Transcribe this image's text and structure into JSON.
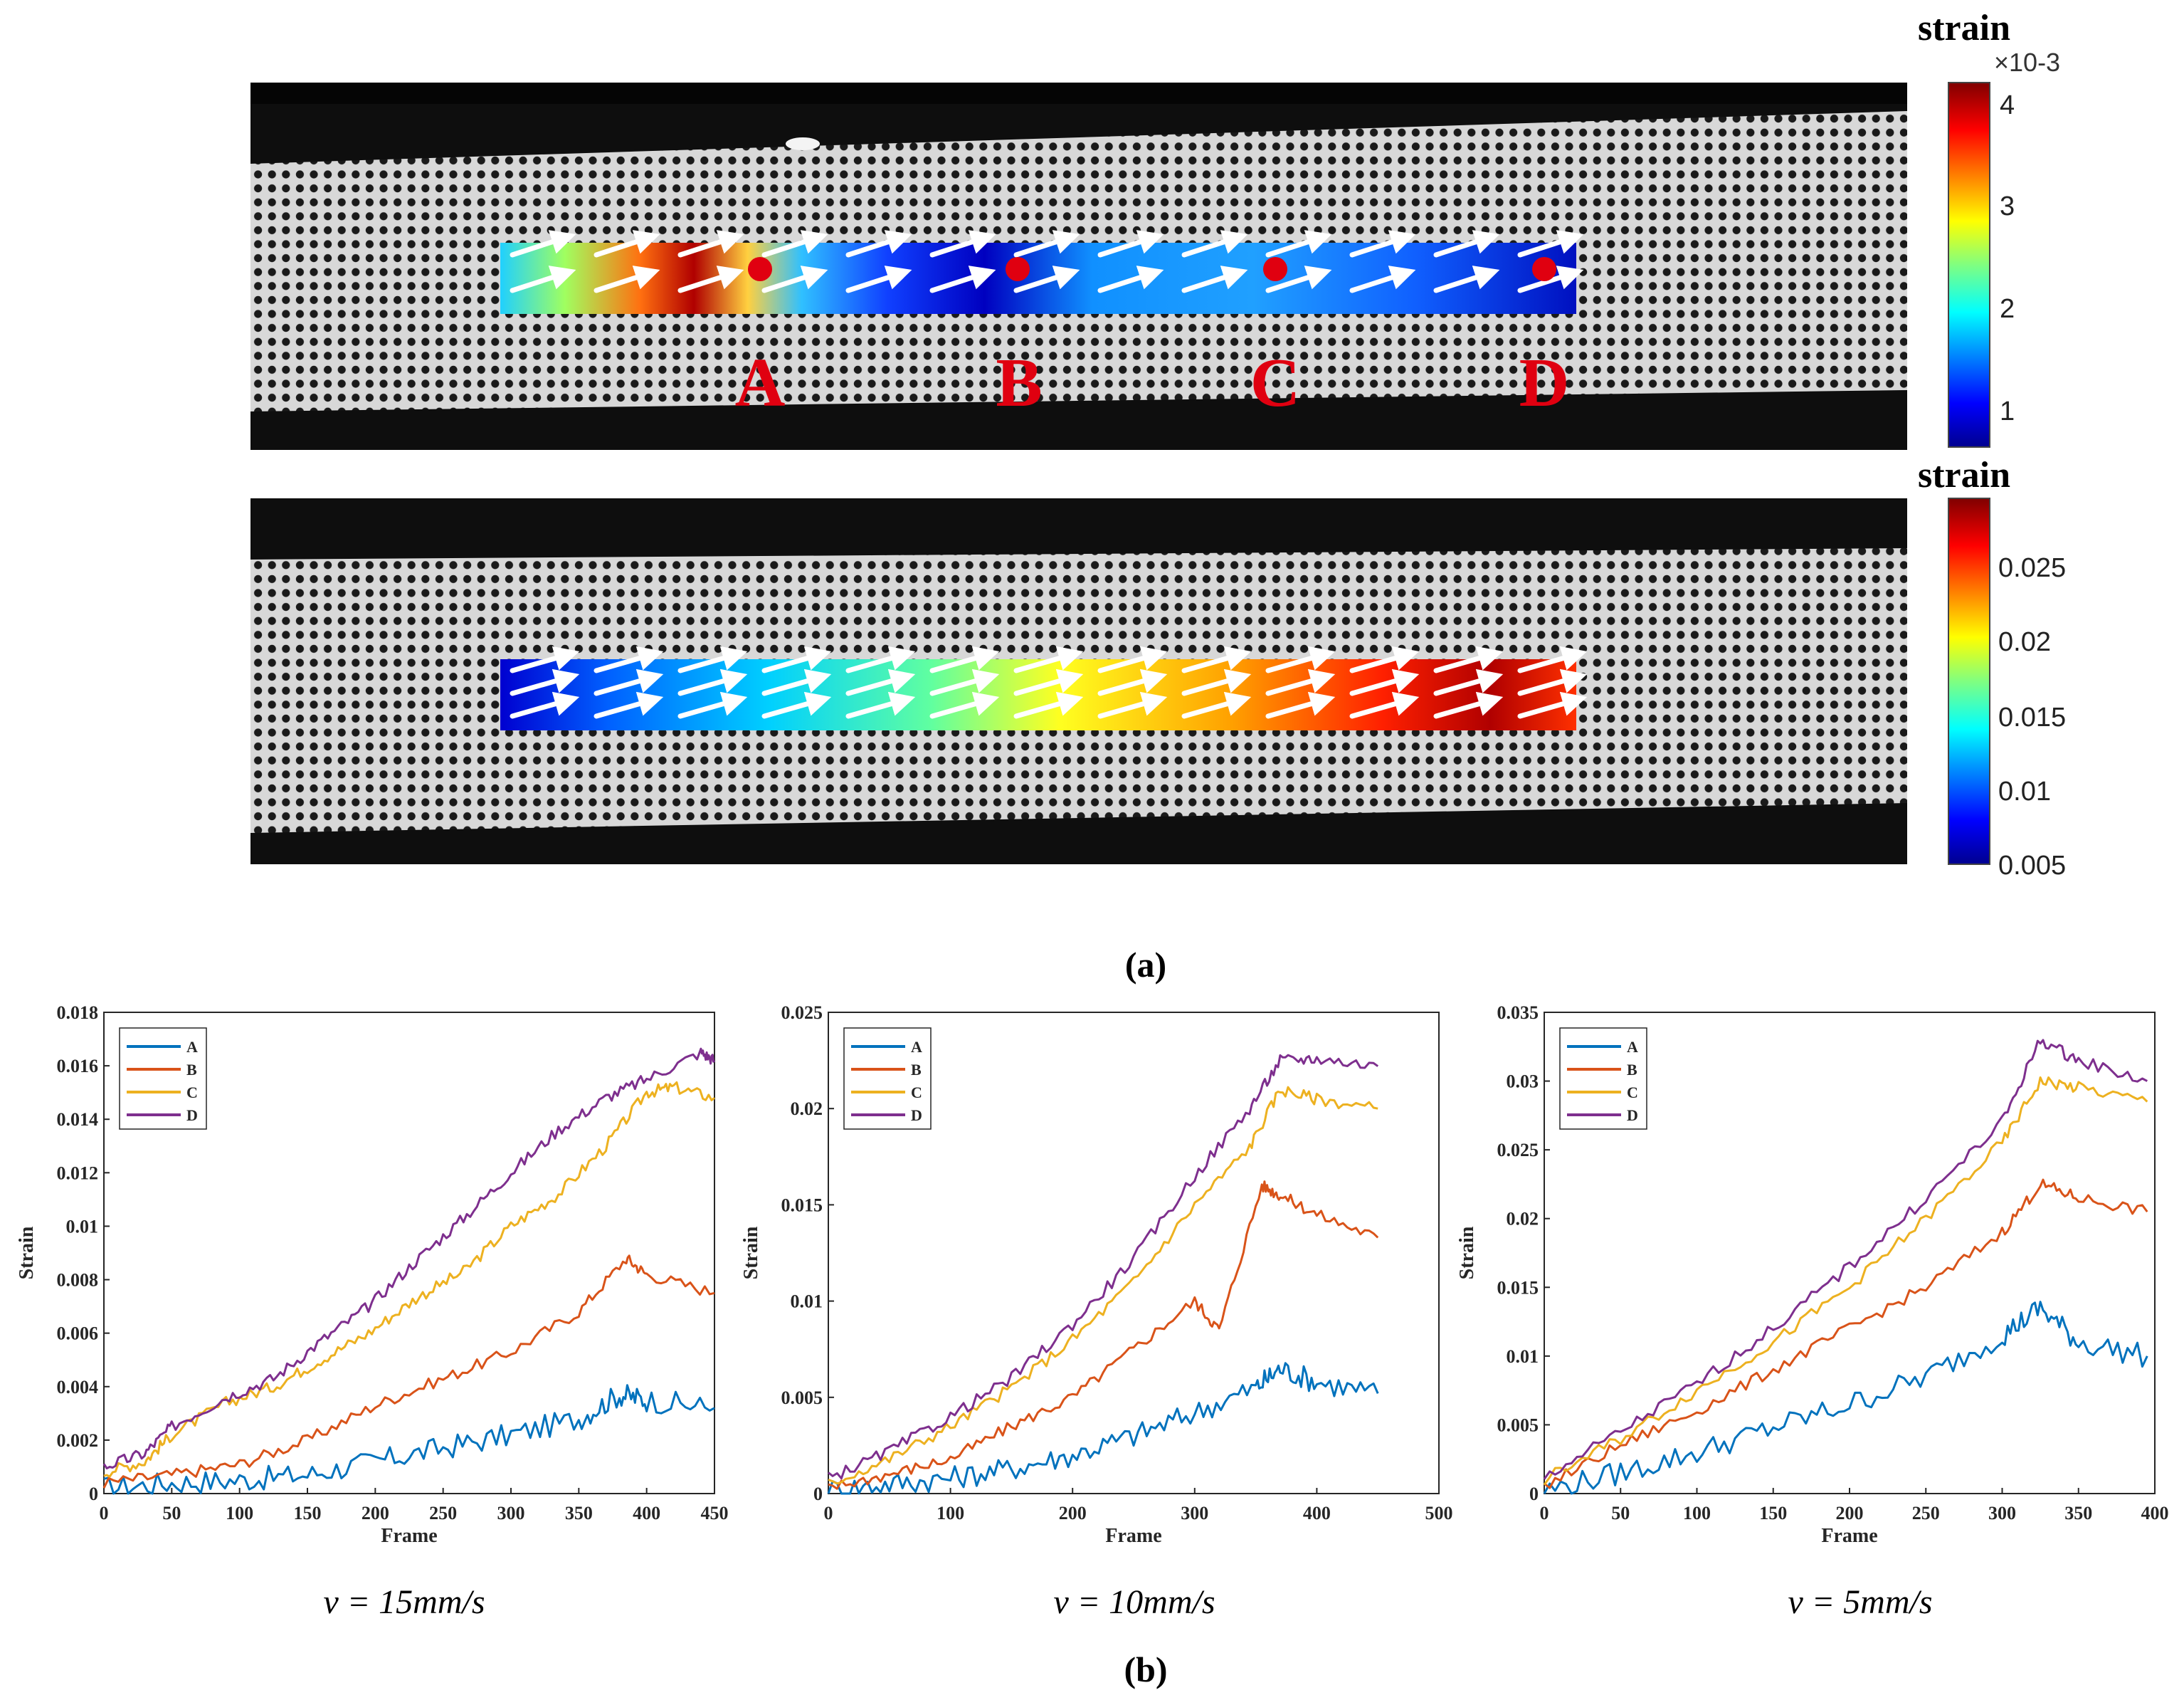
{
  "panel_a": {
    "caption": "(a)",
    "top_map": {
      "colorbar_title": "strain",
      "colorbar_exponent": "×10-3",
      "colorbar_ticks": [
        "4",
        "3",
        "2",
        "1"
      ],
      "point_labels": [
        "A",
        "B",
        "C",
        "D"
      ],
      "colors": {
        "marker": "#e00010",
        "label": "#e00010"
      }
    },
    "bottom_map": {
      "colorbar_title": "strain",
      "colorbar_ticks": [
        "0.025",
        "0.02",
        "0.015",
        "0.01",
        "0.005"
      ]
    }
  },
  "panel_b": {
    "caption": "(b)",
    "velocity_labels": [
      "v = 15mm/s",
      "v = 10mm/s",
      "v = 5mm/s"
    ]
  },
  "chart_data": [
    {
      "type": "line",
      "title": "",
      "subtitle": "v = 15mm/s",
      "xlabel": "Frame",
      "ylabel": "Strain",
      "xlim": [
        0,
        450
      ],
      "ylim": [
        0,
        0.018
      ],
      "xticks": [
        0,
        50,
        100,
        150,
        200,
        250,
        300,
        350,
        400,
        450
      ],
      "yticks": [
        0,
        0.002,
        0.004,
        0.006,
        0.008,
        0.01,
        0.012,
        0.014,
        0.016,
        0.018
      ],
      "ytick_labels": [
        "0",
        "0.002",
        "0.004",
        "0.006",
        "0.008",
        "0.01",
        "0.012",
        "0.014",
        "0.016",
        "0.018"
      ],
      "legend": "top-left",
      "series": [
        {
          "name": "A",
          "color": "#0072bd",
          "x": [
            0,
            50,
            100,
            150,
            200,
            250,
            300,
            350,
            380,
            400,
            450
          ],
          "values": [
            0.0002,
            0.0004,
            0.0005,
            0.0007,
            0.0012,
            0.0017,
            0.0022,
            0.0028,
            0.0037,
            0.0035,
            0.0032
          ]
        },
        {
          "name": "B",
          "color": "#d95319",
          "x": [
            0,
            50,
            100,
            150,
            200,
            250,
            300,
            350,
            385,
            400,
            450
          ],
          "values": [
            0.0004,
            0.0007,
            0.0011,
            0.002,
            0.0033,
            0.0043,
            0.0053,
            0.0068,
            0.0088,
            0.0082,
            0.0075
          ]
        },
        {
          "name": "C",
          "color": "#edb120",
          "x": [
            0,
            30,
            50,
            90,
            125,
            160,
            195,
            230,
            265,
            300,
            335,
            370,
            400,
            420,
            450
          ],
          "values": [
            0.0008,
            0.0012,
            0.0022,
            0.0034,
            0.004,
            0.005,
            0.006,
            0.0073,
            0.0083,
            0.01,
            0.0112,
            0.013,
            0.015,
            0.0152,
            0.0148
          ]
        },
        {
          "name": "D",
          "color": "#7e2f8e",
          "x": [
            0,
            30,
            50,
            90,
            125,
            160,
            195,
            230,
            265,
            300,
            335,
            370,
            400,
            440,
            450
          ],
          "values": [
            0.001,
            0.0015,
            0.0025,
            0.0036,
            0.0043,
            0.0057,
            0.007,
            0.0087,
            0.0103,
            0.012,
            0.0136,
            0.0148,
            0.0155,
            0.0165,
            0.0162
          ]
        }
      ]
    },
    {
      "type": "line",
      "title": "",
      "subtitle": "v = 10mm/s",
      "xlabel": "Frame",
      "ylabel": "Strain",
      "xlim": [
        0,
        500
      ],
      "ylim": [
        0,
        0.025
      ],
      "xticks": [
        0,
        100,
        200,
        300,
        400,
        500
      ],
      "yticks": [
        0,
        0.005,
        0.01,
        0.015,
        0.02,
        0.025
      ],
      "ytick_labels": [
        "0",
        "0.005",
        "0.01",
        "0.015",
        "0.02",
        "0.025"
      ],
      "legend": "top-left",
      "series": [
        {
          "name": "A",
          "color": "#0072bd",
          "x": [
            0,
            50,
            100,
            150,
            200,
            250,
            300,
            350,
            370,
            400,
            450
          ],
          "values": [
            0.0002,
            0.0005,
            0.0008,
            0.0013,
            0.002,
            0.003,
            0.0042,
            0.0055,
            0.0065,
            0.0058,
            0.0052
          ]
        },
        {
          "name": "B",
          "color": "#d95319",
          "x": [
            0,
            50,
            100,
            150,
            200,
            250,
            300,
            320,
            355,
            370,
            400,
            450
          ],
          "values": [
            0.0003,
            0.001,
            0.0018,
            0.0035,
            0.005,
            0.0075,
            0.01,
            0.0085,
            0.016,
            0.0155,
            0.0145,
            0.0133
          ]
        },
        {
          "name": "C",
          "color": "#edb120",
          "x": [
            0,
            50,
            100,
            150,
            200,
            250,
            300,
            345,
            370,
            400,
            450
          ],
          "values": [
            0.0005,
            0.0018,
            0.0035,
            0.0055,
            0.008,
            0.011,
            0.015,
            0.018,
            0.021,
            0.0205,
            0.02
          ]
        },
        {
          "name": "D",
          "color": "#7e2f8e",
          "x": [
            0,
            50,
            100,
            150,
            200,
            250,
            300,
            345,
            370,
            400,
            450
          ],
          "values": [
            0.0008,
            0.0022,
            0.004,
            0.006,
            0.0088,
            0.0122,
            0.0165,
            0.02,
            0.0225,
            0.0226,
            0.0222
          ]
        }
      ]
    },
    {
      "type": "line",
      "title": "",
      "subtitle": "v = 5mm/s",
      "xlabel": "Frame",
      "ylabel": "Strain",
      "xlim": [
        0,
        400
      ],
      "ylim": [
        0,
        0.035
      ],
      "xticks": [
        0,
        50,
        100,
        150,
        200,
        250,
        300,
        350,
        400
      ],
      "yticks": [
        0,
        0.005,
        0.01,
        0.015,
        0.02,
        0.025,
        0.03,
        0.035
      ],
      "ytick_labels": [
        "0",
        "0.005",
        "0.01",
        "0.015",
        "0.02",
        "0.025",
        "0.03",
        "0.035"
      ],
      "legend": "top-left",
      "series": [
        {
          "name": "A",
          "color": "#0072bd",
          "x": [
            0,
            50,
            100,
            150,
            200,
            250,
            300,
            325,
            350,
            395
          ],
          "values": [
            0.0002,
            0.0015,
            0.003,
            0.0048,
            0.0065,
            0.0085,
            0.0115,
            0.0135,
            0.011,
            0.01
          ]
        },
        {
          "name": "B",
          "color": "#d95319",
          "x": [
            0,
            50,
            100,
            150,
            200,
            250,
            300,
            325,
            350,
            395
          ],
          "values": [
            0.0005,
            0.0035,
            0.006,
            0.009,
            0.012,
            0.015,
            0.019,
            0.0225,
            0.0215,
            0.0205
          ]
        },
        {
          "name": "C",
          "color": "#edb120",
          "x": [
            0,
            50,
            100,
            150,
            200,
            250,
            300,
            325,
            350,
            395
          ],
          "values": [
            0.001,
            0.004,
            0.0075,
            0.011,
            0.015,
            0.02,
            0.0255,
            0.03,
            0.0295,
            0.0285
          ]
        },
        {
          "name": "D",
          "color": "#7e2f8e",
          "x": [
            0,
            50,
            100,
            150,
            200,
            250,
            300,
            325,
            350,
            395
          ],
          "values": [
            0.0012,
            0.0045,
            0.008,
            0.012,
            0.0165,
            0.0215,
            0.027,
            0.033,
            0.0315,
            0.03
          ]
        }
      ]
    }
  ]
}
